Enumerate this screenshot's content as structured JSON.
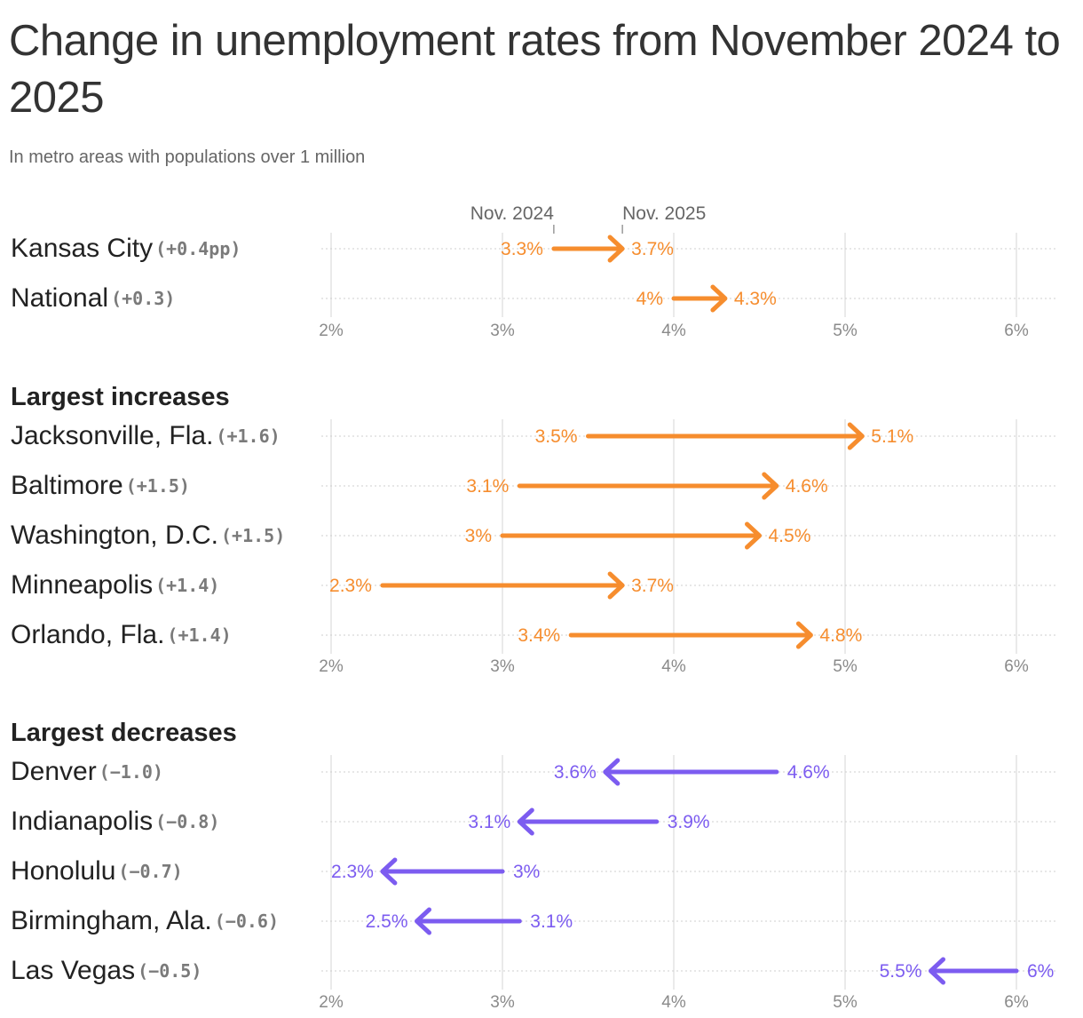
{
  "title": "Change in unemployment rates from November 2024 to 2025",
  "subtitle": "In metro areas with populations over 1 million",
  "colors": {
    "increase": "#f68d2e",
    "decrease": "#7c5cf0",
    "grid": "#e3e3e3",
    "row_line": "#cfcfcf"
  },
  "chart_data": [
    {
      "type": "arrow",
      "panel": "overview",
      "title": "",
      "header_labels": {
        "start": "Nov. 2024",
        "end": "Nov. 2025"
      },
      "x_ticks": [
        "2%",
        "3%",
        "4%",
        "5%",
        "6%"
      ],
      "xlim": [
        2,
        6
      ],
      "rows": [
        {
          "name": "Kansas City",
          "delta": "(+0.4pp)",
          "start": 3.3,
          "end": 3.7,
          "start_label": "3.3%",
          "end_label": "3.7%"
        },
        {
          "name": "National",
          "delta": "(+0.3)",
          "start": 4.0,
          "end": 4.3,
          "start_label": "4%",
          "end_label": "4.3%"
        }
      ]
    },
    {
      "type": "arrow",
      "panel": "increases",
      "title": "Largest increases",
      "x_ticks": [
        "2%",
        "3%",
        "4%",
        "5%",
        "6%"
      ],
      "xlim": [
        2,
        6
      ],
      "rows": [
        {
          "name": "Jacksonville, Fla.",
          "delta": "(+1.6)",
          "start": 3.5,
          "end": 5.1,
          "start_label": "3.5%",
          "end_label": "5.1%"
        },
        {
          "name": "Baltimore",
          "delta": "(+1.5)",
          "start": 3.1,
          "end": 4.6,
          "start_label": "3.1%",
          "end_label": "4.6%"
        },
        {
          "name": "Washington, D.C.",
          "delta": "(+1.5)",
          "start": 3.0,
          "end": 4.5,
          "start_label": "3%",
          "end_label": "4.5%"
        },
        {
          "name": "Minneapolis",
          "delta": "(+1.4)",
          "start": 2.3,
          "end": 3.7,
          "start_label": "2.3%",
          "end_label": "3.7%"
        },
        {
          "name": "Orlando, Fla.",
          "delta": "(+1.4)",
          "start": 3.4,
          "end": 4.8,
          "start_label": "3.4%",
          "end_label": "4.8%"
        }
      ]
    },
    {
      "type": "arrow",
      "panel": "decreases",
      "title": "Largest decreases",
      "x_ticks": [
        "2%",
        "3%",
        "4%",
        "5%",
        "6%"
      ],
      "xlim": [
        2,
        6
      ],
      "rows": [
        {
          "name": "Denver",
          "delta": "(−1.0)",
          "start": 4.6,
          "end": 3.6,
          "start_label": "4.6%",
          "end_label": "3.6%"
        },
        {
          "name": "Indianapolis",
          "delta": "(−0.8)",
          "start": 3.9,
          "end": 3.1,
          "start_label": "3.9%",
          "end_label": "3.1%"
        },
        {
          "name": "Honolulu",
          "delta": "(−0.7)",
          "start": 3.0,
          "end": 2.3,
          "start_label": "3%",
          "end_label": "2.3%"
        },
        {
          "name": "Birmingham, Ala.",
          "delta": "(−0.6)",
          "start": 3.1,
          "end": 2.5,
          "start_label": "3.1%",
          "end_label": "2.5%"
        },
        {
          "name": "Las Vegas",
          "delta": "(−0.5)",
          "start": 6.0,
          "end": 5.5,
          "start_label": "6%",
          "end_label": "5.5%"
        }
      ]
    }
  ]
}
